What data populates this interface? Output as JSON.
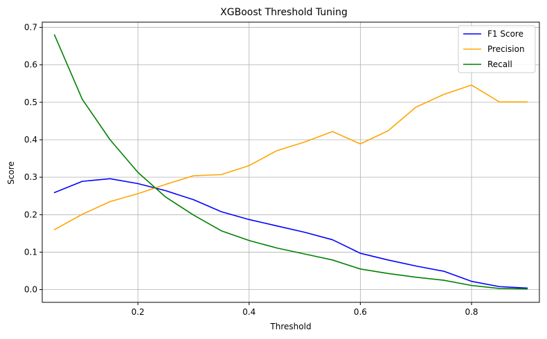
{
  "chart_data": {
    "type": "line",
    "title": "XGBoost Threshold Tuning",
    "xlabel": "Threshold",
    "ylabel": "Score",
    "xlim": [
      0.028,
      0.922
    ],
    "ylim": [
      -0.034,
      0.714
    ],
    "xticks": [
      0.2,
      0.4,
      0.6,
      0.8
    ],
    "xtick_labels": [
      "0.2",
      "0.4",
      "0.6",
      "0.8"
    ],
    "yticks": [
      0.0,
      0.1,
      0.2,
      0.3,
      0.4,
      0.5,
      0.6,
      0.7
    ],
    "ytick_labels": [
      "0.0",
      "0.1",
      "0.2",
      "0.3",
      "0.4",
      "0.5",
      "0.6",
      "0.7"
    ],
    "grid": true,
    "legend": "top-right",
    "x": [
      0.05,
      0.1,
      0.15,
      0.2,
      0.25,
      0.3,
      0.35,
      0.4,
      0.45,
      0.5,
      0.55,
      0.6,
      0.65,
      0.7,
      0.75,
      0.8,
      0.85,
      0.9
    ],
    "series": [
      {
        "name": "F1 Score",
        "color": "#0000ff",
        "values": [
          0.259,
          0.289,
          0.296,
          0.283,
          0.264,
          0.24,
          0.208,
          0.187,
          0.17,
          0.153,
          0.133,
          0.097,
          0.079,
          0.063,
          0.049,
          0.022,
          0.008,
          0.004
        ]
      },
      {
        "name": "Precision",
        "color": "#ffa500",
        "values": [
          0.16,
          0.201,
          0.235,
          0.256,
          0.281,
          0.304,
          0.307,
          0.331,
          0.371,
          0.394,
          0.422,
          0.389,
          0.424,
          0.487,
          0.521,
          0.546,
          0.501,
          0.501
        ]
      },
      {
        "name": "Recall",
        "color": "#008000",
        "values": [
          0.68,
          0.508,
          0.4,
          0.313,
          0.247,
          0.199,
          0.157,
          0.131,
          0.111,
          0.095,
          0.079,
          0.055,
          0.043,
          0.033,
          0.025,
          0.011,
          0.003,
          0.002
        ]
      }
    ]
  }
}
